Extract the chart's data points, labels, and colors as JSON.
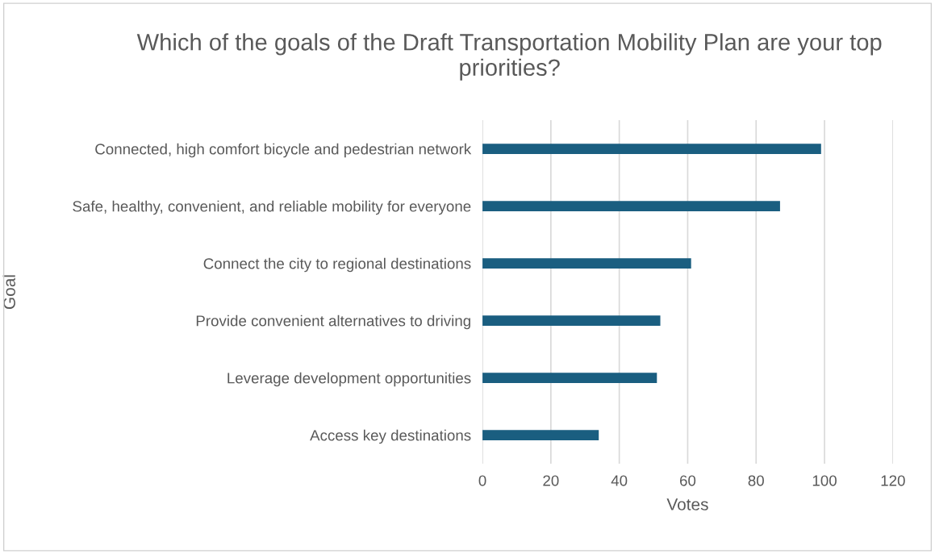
{
  "chart_data": {
    "type": "bar",
    "orientation": "horizontal",
    "title": "Which of the goals of the Draft Transportation Mobility Plan are your top priorities?",
    "xlabel": "Votes",
    "ylabel": "Goal",
    "categories": [
      "Connected, high comfort bicycle and pedestrian network",
      "Safe, healthy, convenient, and reliable mobility for everyone",
      "Connect the city to regional destinations",
      "Provide convenient alternatives to driving",
      "Leverage development opportunities",
      "Access key destinations"
    ],
    "values": [
      99,
      87,
      61,
      52,
      51,
      34
    ],
    "color": "#1a5e80",
    "xlim": [
      0,
      120
    ],
    "xticks": [
      0,
      20,
      40,
      60,
      80,
      100,
      120
    ],
    "grid": "x",
    "legend": false
  }
}
